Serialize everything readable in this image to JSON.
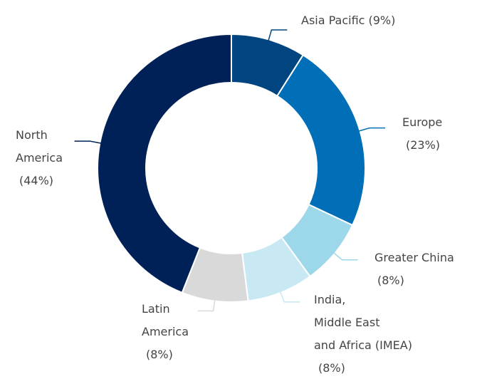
{
  "chart_data": {
    "type": "donut",
    "categories": [
      "Asia Pacific",
      "Europe",
      "Greater China",
      "India,\nMiddle East\nand Africa (IMEA)",
      "Latin\nAmerica",
      "North\nAmerica"
    ],
    "values": [
      9,
      23,
      8,
      8,
      8,
      44
    ],
    "value_labels": [
      "(9%)",
      "(23%)",
      "(8%)",
      "(8%)",
      "(8%)",
      "(44%)"
    ],
    "colors": [
      "#00457f",
      "#006fb7",
      "#9dd7ea",
      "#c8e8f3",
      "#d9d9d9",
      "#002157"
    ]
  }
}
